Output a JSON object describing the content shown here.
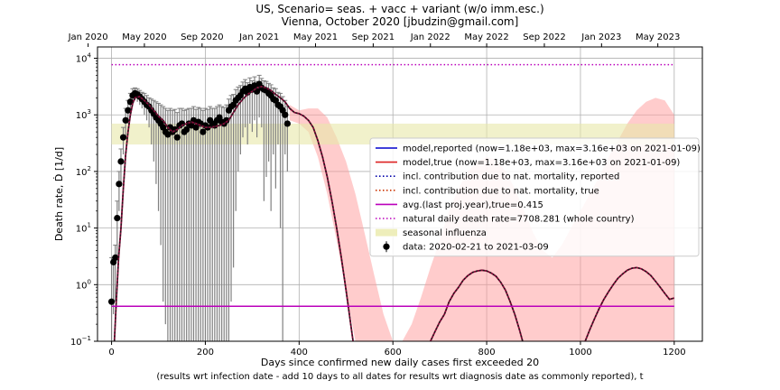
{
  "chart_data": {
    "type": "line",
    "title_line1": "US, Scenario= seas. + vacc + variant (w/o imm.esc.)",
    "title_line2": "Vienna, October 2020 [jbudzin@gmail.com]",
    "xlabel_line1": "Days since confirmed new daily cases first exceeded 20",
    "xlabel_line2": "(results wrt infection date - add 10 days to all dates for results wrt diagnosis date as commonly reported), t",
    "ylabel": "Death rate, Ḋ [1/d]",
    "xlim": [
      -30,
      1260
    ],
    "ylim_log10": [
      -1,
      4.2
    ],
    "log_y": true,
    "grid": true,
    "x_ticks": [
      0,
      200,
      400,
      600,
      800,
      1000,
      1200
    ],
    "y_ticks": [
      {
        "exp": -1,
        "label": "10",
        "sup": "−1"
      },
      {
        "exp": 0,
        "label": "10",
        "sup": "0"
      },
      {
        "exp": 1,
        "label": "10",
        "sup": "1"
      },
      {
        "exp": 2,
        "label": "10",
        "sup": "2"
      },
      {
        "exp": 3,
        "label": "10",
        "sup": "3"
      },
      {
        "exp": 4,
        "label": "10",
        "sup": "4"
      }
    ],
    "top_axis": [
      {
        "day": -50,
        "label": "Jan 2020"
      },
      {
        "day": 70,
        "label": "May 2020"
      },
      {
        "day": 193,
        "label": "Sep 2020"
      },
      {
        "day": 315,
        "label": "Jan 2021"
      },
      {
        "day": 435,
        "label": "May 2021"
      },
      {
        "day": 558,
        "label": "Sep 2021"
      },
      {
        "day": 680,
        "label": "Jan 2022"
      },
      {
        "day": 800,
        "label": "May 2022"
      },
      {
        "day": 923,
        "label": "Sep 2022"
      },
      {
        "day": 1045,
        "label": "Jan 2023"
      },
      {
        "day": 1165,
        "label": "May 2023"
      }
    ],
    "legend": {
      "position": "center-right",
      "entries": [
        {
          "label": "model,reported (now=1.18e+03, max=3.16e+03 on 2021-01-09)",
          "color": "#0000cc",
          "style": "solid"
        },
        {
          "label": "model,true (now=1.18e+03, max=3.16e+03 on 2021-01-09)",
          "color": "#dd2222",
          "style": "solid"
        },
        {
          "label": "incl. contribution due to nat. mortality, reported",
          "color": "#0000aa",
          "style": "dotted"
        },
        {
          "label": "incl. contribution due to nat. mortality, true",
          "color": "#cc3300",
          "style": "dotted"
        },
        {
          "label": "avg.(last proj.year),true=0.415",
          "color": "#bb00bb",
          "style": "solid"
        },
        {
          "label": "natural daily death rate=7708.281 (whole country)",
          "color": "#bb00bb",
          "style": "dotted"
        },
        {
          "label": "seasonal influenza",
          "color": "#eeeebb",
          "style": "patch"
        },
        {
          "label": "data: 2020-02-21 to 2021-03-09",
          "color": "#000000",
          "style": "errorbar"
        }
      ]
    },
    "natural_death_rate": 7708.281,
    "avg_last_year": 0.415,
    "seasonal_influenza_band": [
      300,
      700
    ],
    "model": {
      "x": [
        0,
        6,
        10,
        15,
        20,
        25,
        30,
        35,
        40,
        45,
        50,
        60,
        70,
        80,
        90,
        100,
        110,
        120,
        130,
        140,
        150,
        160,
        170,
        180,
        190,
        200,
        210,
        220,
        230,
        240,
        250,
        260,
        270,
        280,
        290,
        300,
        310,
        320,
        330,
        340,
        350,
        360,
        370,
        380,
        390,
        400,
        410,
        420,
        430,
        440,
        450,
        460,
        470,
        480,
        490,
        500,
        510,
        520,
        530,
        540,
        550,
        560,
        570,
        580,
        590,
        600,
        610,
        620,
        630,
        640,
        650,
        660,
        670,
        680,
        690,
        700,
        710,
        720,
        730,
        740,
        750,
        760,
        770,
        780,
        790,
        800,
        810,
        820,
        830,
        840,
        850,
        860,
        870,
        880,
        890,
        900,
        910,
        920,
        930,
        940,
        950,
        960,
        970,
        980,
        990,
        1000,
        1010,
        1020,
        1030,
        1040,
        1050,
        1060,
        1070,
        1080,
        1090,
        1100,
        1110,
        1120,
        1130,
        1140,
        1150,
        1160,
        1170,
        1180,
        1190,
        1200
      ],
      "y": [
        0.02,
        0.1,
        0.5,
        3,
        10,
        50,
        200,
        500,
        1000,
        1600,
        2000,
        2100,
        1800,
        1500,
        1200,
        950,
        800,
        600,
        500,
        550,
        650,
        700,
        750,
        700,
        650,
        600,
        600,
        620,
        650,
        700,
        800,
        1100,
        1500,
        1900,
        2300,
        2600,
        3000,
        3160,
        3000,
        2700,
        2300,
        2000,
        1700,
        1300,
        1100,
        1050,
        950,
        800,
        600,
        350,
        180,
        80,
        30,
        10,
        3,
        0.8,
        0.2,
        0.05,
        0.01,
        0.003,
        0.001,
        0.001,
        0.001,
        0.001,
        0.001,
        0.001,
        0.001,
        0.002,
        0.005,
        0.01,
        0.02,
        0.04,
        0.07,
        0.1,
        0.15,
        0.22,
        0.3,
        0.5,
        0.7,
        0.9,
        1.2,
        1.45,
        1.65,
        1.75,
        1.8,
        1.75,
        1.6,
        1.4,
        1.1,
        0.8,
        0.5,
        0.3,
        0.16,
        0.08,
        0.04,
        0.02,
        0.01,
        0.005,
        0.003,
        0.003,
        0.005,
        0.008,
        0.012,
        0.02,
        0.035,
        0.06,
        0.1,
        0.16,
        0.25,
        0.38,
        0.55,
        0.75,
        1.0,
        1.3,
        1.55,
        1.8,
        1.95,
        2.0,
        1.9,
        1.7,
        1.45,
        1.15,
        0.9,
        0.7,
        0.55,
        0.58
      ]
    },
    "uncertainty_band": {
      "x": [
        380,
        400,
        420,
        440,
        460,
        480,
        500,
        520,
        540,
        560,
        580,
        600,
        620,
        640,
        660,
        680,
        700,
        720,
        740,
        760,
        780,
        800,
        820,
        840,
        860,
        880,
        900,
        920,
        940,
        960,
        980,
        1000,
        1020,
        1040,
        1060,
        1080,
        1100,
        1120,
        1140,
        1160,
        1180,
        1200
      ],
      "upper": [
        1500,
        1200,
        1300,
        1300,
        900,
        400,
        150,
        40,
        8,
        1.5,
        0.3,
        0.1,
        0.1,
        0.2,
        0.6,
        2,
        6,
        20,
        50,
        100,
        150,
        180,
        160,
        100,
        50,
        20,
        8,
        4,
        3,
        5,
        10,
        20,
        40,
        80,
        180,
        350,
        700,
        1200,
        1700,
        2000,
        1800,
        1000
      ],
      "lower": [
        800,
        700,
        500,
        180,
        40,
        6,
        0.8,
        0.1,
        0.01,
        0.001,
        0.001,
        0.001,
        0.001,
        0.001,
        0.001,
        0.001,
        0.001,
        0.001,
        0.001,
        0.001,
        0.001,
        0.001,
        0.001,
        0.001,
        0.001,
        0.001,
        0.001,
        0.001,
        0.001,
        0.001,
        0.001,
        0.001,
        0.001,
        0.001,
        0.001,
        0.001,
        0.001,
        0.001,
        0.001,
        0.001,
        0.001,
        0.001
      ]
    },
    "data_points": {
      "x": [
        0,
        4,
        8,
        12,
        16,
        20,
        25,
        30,
        35,
        40,
        45,
        50,
        55,
        60,
        65,
        70,
        75,
        80,
        85,
        90,
        95,
        100,
        105,
        110,
        115,
        120,
        125,
        130,
        135,
        140,
        145,
        150,
        155,
        160,
        165,
        170,
        175,
        180,
        185,
        190,
        195,
        200,
        205,
        210,
        215,
        220,
        225,
        230,
        235,
        240,
        245,
        250,
        255,
        260,
        265,
        270,
        275,
        280,
        285,
        290,
        295,
        300,
        305,
        310,
        315,
        320,
        325,
        330,
        335,
        340,
        345,
        350,
        355,
        360,
        365,
        370,
        375
      ],
      "y": [
        0.5,
        2.5,
        3,
        15,
        60,
        150,
        400,
        800,
        1200,
        1700,
        2200,
        2400,
        2300,
        2100,
        1900,
        1700,
        1500,
        1400,
        1200,
        1050,
        900,
        800,
        700,
        600,
        500,
        450,
        600,
        500,
        550,
        400,
        650,
        700,
        500,
        550,
        700,
        650,
        800,
        600,
        750,
        700,
        500,
        650,
        600,
        800,
        700,
        650,
        800,
        900,
        750,
        700,
        800,
        1200,
        1400,
        1500,
        1800,
        2000,
        2200,
        2600,
        2900,
        2500,
        3100,
        2800,
        3300,
        2600,
        3500,
        3000,
        2800,
        2700,
        2400,
        2200,
        1900,
        1800,
        1500,
        1400,
        1200,
        1000,
        700
      ],
      "err_lo": [
        0.1,
        0.3,
        0.5,
        3,
        20,
        60,
        200,
        400,
        700,
        1000,
        1500,
        1800,
        1700,
        1500,
        1300,
        1000,
        800,
        600,
        300,
        150,
        60,
        20,
        5,
        0.5,
        0.2,
        0.1,
        0.1,
        0.1,
        0.1,
        0.1,
        0.1,
        0.1,
        0.1,
        0.1,
        0.1,
        0.1,
        0.1,
        0.1,
        0.1,
        0.1,
        0.1,
        0.1,
        0.1,
        0.1,
        0.1,
        0.1,
        0.1,
        0.1,
        0.1,
        0.1,
        0.1,
        0.1,
        0.5,
        2,
        20,
        100,
        200,
        400,
        600,
        300,
        700,
        500,
        800,
        400,
        900,
        600,
        30,
        80,
        150,
        20,
        200,
        50,
        300,
        10,
        0.1,
        200,
        100
      ],
      "err_hi": [
        3,
        3,
        5,
        30,
        100,
        250,
        600,
        1300,
        1800,
        2400,
        2900,
        3000,
        2900,
        2700,
        2500,
        2400,
        2200,
        2000,
        1900,
        1800,
        1700,
        1600,
        1500,
        1400,
        1300,
        1200,
        1300,
        1200,
        1250,
        1100,
        1300,
        1300,
        1200,
        1250,
        1300,
        1300,
        1400,
        1250,
        1350,
        1300,
        1200,
        1300,
        1250,
        1400,
        1300,
        1300,
        1400,
        1500,
        1400,
        1350,
        1500,
        1900,
        2200,
        2300,
        2800,
        3100,
        3300,
        3800,
        4200,
        3700,
        4500,
        4000,
        4700,
        3900,
        5000,
        4400,
        4000,
        3900,
        3600,
        3400,
        3000,
        2900,
        2500,
        2400,
        2100,
        1800,
        1400
      ]
    }
  }
}
